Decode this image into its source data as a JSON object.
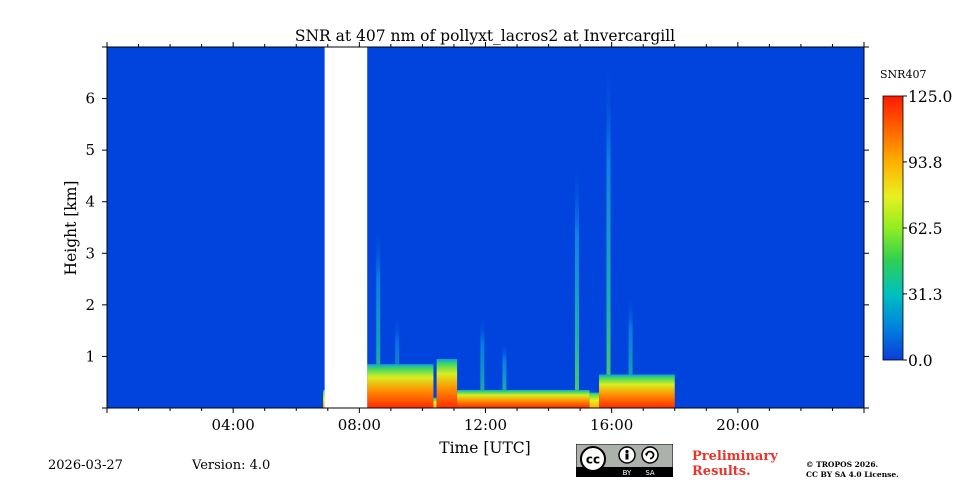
{
  "chart_data": {
    "type": "heatmap",
    "title": "SNR at 407 nm of pollyxt_lacros2 at Invercargill",
    "xlabel": "Time [UTC]",
    "ylabel": "Height [km]",
    "xlim_hours": [
      0,
      24
    ],
    "ylim_km": [
      0,
      7
    ],
    "x_ticks": [
      {
        "hour": 4,
        "label": "04:00"
      },
      {
        "hour": 8,
        "label": "08:00"
      },
      {
        "hour": 12,
        "label": "12:00"
      },
      {
        "hour": 16,
        "label": "16:00"
      },
      {
        "hour": 20,
        "label": "20:00"
      }
    ],
    "y_ticks": [
      {
        "km": 1,
        "label": "1"
      },
      {
        "km": 2,
        "label": "2"
      },
      {
        "km": 3,
        "label": "3"
      },
      {
        "km": 4,
        "label": "4"
      },
      {
        "km": 5,
        "label": "5"
      },
      {
        "km": 6,
        "label": "6"
      }
    ],
    "colorbar": {
      "label": "SNR407",
      "range": [
        0,
        125
      ],
      "ticks": [
        "0.0",
        "31.3",
        "62.5",
        "93.8",
        "125.0"
      ],
      "tick_values": [
        0,
        31.3,
        62.5,
        93.8,
        125.0
      ]
    },
    "no_data_interval_hours": [
      6.9,
      8.25
    ],
    "signal_end_hour": 18.0,
    "signal_layers": [
      {
        "start_hour": 6.85,
        "end_hour": 6.95,
        "top_km": 0.35,
        "snr": 60
      },
      {
        "start_hour": 8.25,
        "end_hour": 10.35,
        "top_km": 0.85,
        "snr": 80
      },
      {
        "start_hour": 10.35,
        "end_hour": 10.45,
        "top_km": 0.2,
        "snr": 55
      },
      {
        "start_hour": 10.45,
        "end_hour": 11.1,
        "top_km": 0.95,
        "snr": 85
      },
      {
        "start_hour": 11.1,
        "end_hour": 15.3,
        "top_km": 0.35,
        "snr": 90
      },
      {
        "start_hour": 15.3,
        "end_hour": 15.6,
        "top_km": 0.3,
        "snr": 70
      },
      {
        "start_hour": 15.6,
        "end_hour": 18.0,
        "top_km": 0.65,
        "snr": 120
      }
    ],
    "signal_plumes": [
      {
        "hour": 8.6,
        "top_km": 3.6,
        "snr": 45
      },
      {
        "hour": 9.2,
        "top_km": 1.8,
        "snr": 35
      },
      {
        "hour": 11.9,
        "top_km": 1.8,
        "snr": 40
      },
      {
        "hour": 12.6,
        "top_km": 1.3,
        "snr": 45
      },
      {
        "hour": 14.9,
        "top_km": 4.8,
        "snr": 50
      },
      {
        "hour": 15.9,
        "top_km": 6.8,
        "snr": 50
      },
      {
        "hour": 16.6,
        "top_km": 2.2,
        "snr": 40
      }
    ]
  },
  "footer": {
    "date": "2026-03-27",
    "version": "Version: 4.0",
    "preliminary_line1": "Preliminary",
    "preliminary_line2": "Results.",
    "copyright_line1": "© TROPOS 2026.",
    "copyright_line2": "CC BY SA 4.0 License.",
    "cc_main": "cc",
    "cc_by": "BY",
    "cc_sa": "SA"
  },
  "colors": {
    "background_low": "#0044dd",
    "axis": "#000000",
    "preliminary": "#e8342a"
  }
}
